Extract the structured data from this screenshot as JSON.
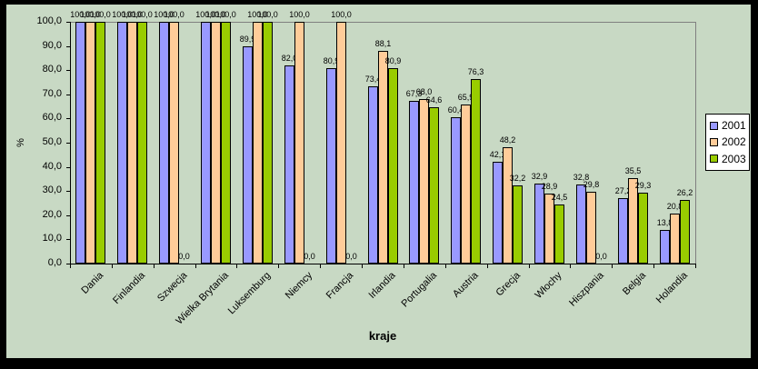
{
  "chart_data": {
    "type": "bar",
    "title": "",
    "xlabel": "kraje",
    "ylabel": "%",
    "categories": [
      "Dania",
      "Finlandia",
      "Szwecja",
      "Wielka Brytania",
      "Luksemburg",
      "Niemcy",
      "Francja",
      "Irlandia",
      "Portugalia",
      "Austria",
      "Grecja",
      "Włochy",
      "Hiszpania",
      "Belgia",
      "Holandia"
    ],
    "series": [
      {
        "name": "2001",
        "color": "#9999FF",
        "values": [
          100.0,
          100.0,
          100.0,
          100.0,
          89.9,
          82.0,
          80.9,
          73.4,
          67.3,
          60.4,
          42.1,
          32.9,
          32.8,
          27.2,
          13.8
        ]
      },
      {
        "name": "2002",
        "color": "#FFCC99",
        "values": [
          100.0,
          100.0,
          100.0,
          100.0,
          100.0,
          100.0,
          100.0,
          88.1,
          68.0,
          65.9,
          48.2,
          28.9,
          29.8,
          35.5,
          20.8
        ]
      },
      {
        "name": "2003",
        "color": "#99CC00",
        "values": [
          100.0,
          100.0,
          0.0,
          100.0,
          100.0,
          0.0,
          0.0,
          80.9,
          64.6,
          76.3,
          32.2,
          24.5,
          0.0,
          29.3,
          26.2
        ]
      }
    ],
    "ylim": [
      0,
      100
    ],
    "y_ticks": [
      "0,0",
      "10,0",
      "20,0",
      "30,0",
      "40,0",
      "50,0",
      "60,0",
      "70,0",
      "80,0",
      "90,0",
      "100,0"
    ],
    "data_labels": true,
    "gridlines": false,
    "decimal_separator": ",",
    "legend": {
      "position": "right",
      "entries": [
        "2001",
        "2002",
        "2003"
      ]
    },
    "colors": {
      "background": "#C8D9C4",
      "plot_border": "#808080",
      "axis": "#000000",
      "text": "#000000",
      "legend_bg": "#FFFFFF",
      "outer_border": "#000000"
    }
  }
}
